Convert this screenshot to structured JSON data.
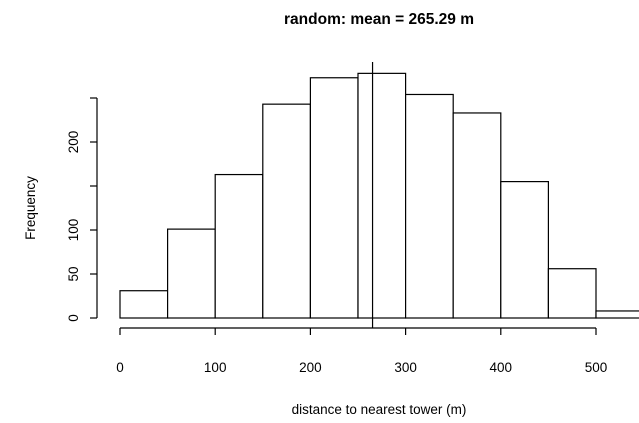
{
  "chart_data": {
    "type": "bar",
    "subtype": "histogram",
    "title": "random: mean = 265.29 m",
    "xlabel": "distance to nearest tower (m)",
    "ylabel": "Frequency",
    "bin_edges": [
      0,
      50,
      100,
      150,
      200,
      250,
      300,
      350,
      400,
      450,
      500,
      550
    ],
    "values": [
      31,
      101,
      163,
      243,
      273,
      278,
      254,
      233,
      155,
      56,
      8
    ],
    "mean_line": 265.29,
    "xlim": [
      0,
      550
    ],
    "ylim": [
      0,
      278
    ],
    "x_ticks": [
      0,
      100,
      200,
      300,
      400,
      500
    ],
    "x_tick_labels": [
      "0",
      "100",
      "200",
      "300",
      "400",
      "500"
    ],
    "y_axis_ticks": [
      0,
      50,
      100,
      150,
      200,
      250
    ],
    "y_tick_labels": [
      "0",
      "50",
      "100",
      "",
      "200",
      ""
    ],
    "grid": false,
    "legend": "none",
    "colors": {
      "bar_fill": "#ffffff",
      "stroke": "#000000"
    }
  }
}
